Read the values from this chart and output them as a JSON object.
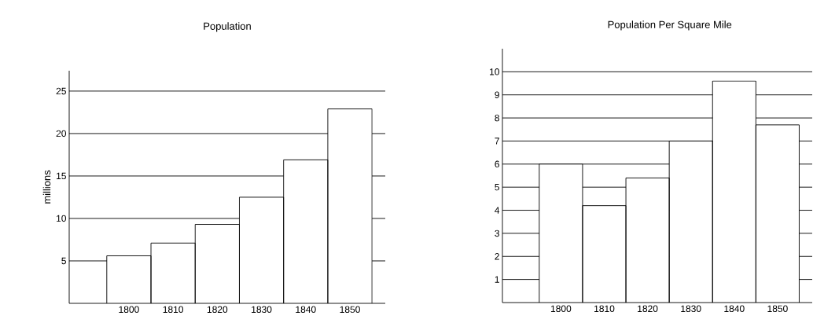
{
  "chart_data": [
    {
      "type": "bar",
      "title": "Population",
      "ylabel": "millions",
      "categories": [
        "1800",
        "1810",
        "1820",
        "1830",
        "1840",
        "1850"
      ],
      "values": [
        5.6,
        7.1,
        9.3,
        12.5,
        16.9,
        22.9
      ],
      "color": "#ffffff",
      "ylim": [
        0,
        27.4
      ],
      "yticks": [
        5,
        10,
        15,
        20,
        25
      ],
      "grid": "y"
    },
    {
      "type": "bar",
      "title": "Population Per Square Mile",
      "categories": [
        "1800",
        "1810",
        "1820",
        "1830",
        "1840",
        "1850"
      ],
      "values": [
        6.0,
        4.2,
        5.4,
        7.0,
        9.6,
        7.7
      ],
      "color": "#ffffff",
      "ylim": [
        0,
        11
      ],
      "yticks": [
        1,
        2,
        3,
        4,
        5,
        6,
        7,
        8,
        9,
        10
      ],
      "grid": "y"
    }
  ]
}
